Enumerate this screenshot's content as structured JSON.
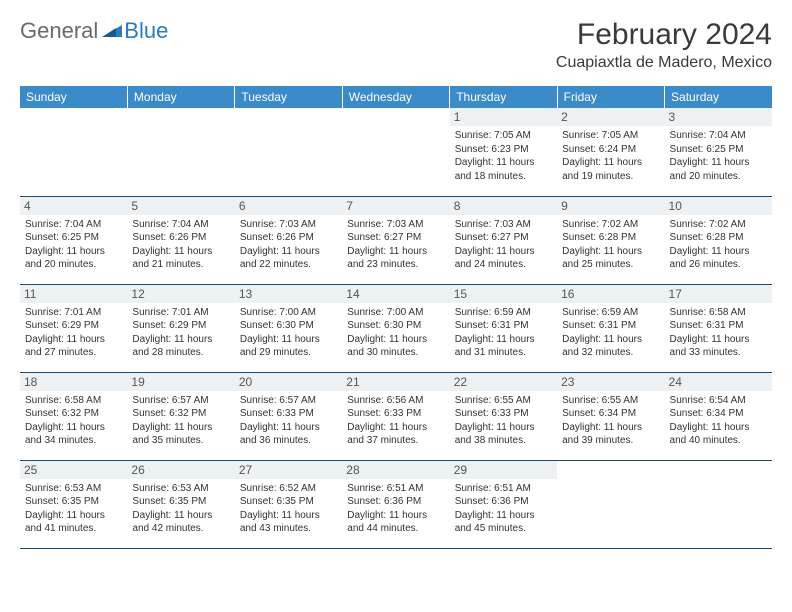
{
  "logo": {
    "text_general": "General",
    "text_blue": "Blue",
    "icon_color": "#2b7bbf"
  },
  "title": {
    "month": "February 2024",
    "location": "Cuapiaxtla de Madero, Mexico"
  },
  "colors": {
    "header_bg": "#3b8bc8",
    "header_text": "#ffffff",
    "daynum_bg": "#eef1f3",
    "border": "#1a4d73",
    "text": "#333333"
  },
  "weekdays": [
    "Sunday",
    "Monday",
    "Tuesday",
    "Wednesday",
    "Thursday",
    "Friday",
    "Saturday"
  ],
  "weeks": [
    [
      null,
      null,
      null,
      null,
      {
        "n": "1",
        "sunrise": "7:05 AM",
        "sunset": "6:23 PM",
        "daylight": "11 hours and 18 minutes."
      },
      {
        "n": "2",
        "sunrise": "7:05 AM",
        "sunset": "6:24 PM",
        "daylight": "11 hours and 19 minutes."
      },
      {
        "n": "3",
        "sunrise": "7:04 AM",
        "sunset": "6:25 PM",
        "daylight": "11 hours and 20 minutes."
      }
    ],
    [
      {
        "n": "4",
        "sunrise": "7:04 AM",
        "sunset": "6:25 PM",
        "daylight": "11 hours and 20 minutes."
      },
      {
        "n": "5",
        "sunrise": "7:04 AM",
        "sunset": "6:26 PM",
        "daylight": "11 hours and 21 minutes."
      },
      {
        "n": "6",
        "sunrise": "7:03 AM",
        "sunset": "6:26 PM",
        "daylight": "11 hours and 22 minutes."
      },
      {
        "n": "7",
        "sunrise": "7:03 AM",
        "sunset": "6:27 PM",
        "daylight": "11 hours and 23 minutes."
      },
      {
        "n": "8",
        "sunrise": "7:03 AM",
        "sunset": "6:27 PM",
        "daylight": "11 hours and 24 minutes."
      },
      {
        "n": "9",
        "sunrise": "7:02 AM",
        "sunset": "6:28 PM",
        "daylight": "11 hours and 25 minutes."
      },
      {
        "n": "10",
        "sunrise": "7:02 AM",
        "sunset": "6:28 PM",
        "daylight": "11 hours and 26 minutes."
      }
    ],
    [
      {
        "n": "11",
        "sunrise": "7:01 AM",
        "sunset": "6:29 PM",
        "daylight": "11 hours and 27 minutes."
      },
      {
        "n": "12",
        "sunrise": "7:01 AM",
        "sunset": "6:29 PM",
        "daylight": "11 hours and 28 minutes."
      },
      {
        "n": "13",
        "sunrise": "7:00 AM",
        "sunset": "6:30 PM",
        "daylight": "11 hours and 29 minutes."
      },
      {
        "n": "14",
        "sunrise": "7:00 AM",
        "sunset": "6:30 PM",
        "daylight": "11 hours and 30 minutes."
      },
      {
        "n": "15",
        "sunrise": "6:59 AM",
        "sunset": "6:31 PM",
        "daylight": "11 hours and 31 minutes."
      },
      {
        "n": "16",
        "sunrise": "6:59 AM",
        "sunset": "6:31 PM",
        "daylight": "11 hours and 32 minutes."
      },
      {
        "n": "17",
        "sunrise": "6:58 AM",
        "sunset": "6:31 PM",
        "daylight": "11 hours and 33 minutes."
      }
    ],
    [
      {
        "n": "18",
        "sunrise": "6:58 AM",
        "sunset": "6:32 PM",
        "daylight": "11 hours and 34 minutes."
      },
      {
        "n": "19",
        "sunrise": "6:57 AM",
        "sunset": "6:32 PM",
        "daylight": "11 hours and 35 minutes."
      },
      {
        "n": "20",
        "sunrise": "6:57 AM",
        "sunset": "6:33 PM",
        "daylight": "11 hours and 36 minutes."
      },
      {
        "n": "21",
        "sunrise": "6:56 AM",
        "sunset": "6:33 PM",
        "daylight": "11 hours and 37 minutes."
      },
      {
        "n": "22",
        "sunrise": "6:55 AM",
        "sunset": "6:33 PM",
        "daylight": "11 hours and 38 minutes."
      },
      {
        "n": "23",
        "sunrise": "6:55 AM",
        "sunset": "6:34 PM",
        "daylight": "11 hours and 39 minutes."
      },
      {
        "n": "24",
        "sunrise": "6:54 AM",
        "sunset": "6:34 PM",
        "daylight": "11 hours and 40 minutes."
      }
    ],
    [
      {
        "n": "25",
        "sunrise": "6:53 AM",
        "sunset": "6:35 PM",
        "daylight": "11 hours and 41 minutes."
      },
      {
        "n": "26",
        "sunrise": "6:53 AM",
        "sunset": "6:35 PM",
        "daylight": "11 hours and 42 minutes."
      },
      {
        "n": "27",
        "sunrise": "6:52 AM",
        "sunset": "6:35 PM",
        "daylight": "11 hours and 43 minutes."
      },
      {
        "n": "28",
        "sunrise": "6:51 AM",
        "sunset": "6:36 PM",
        "daylight": "11 hours and 44 minutes."
      },
      {
        "n": "29",
        "sunrise": "6:51 AM",
        "sunset": "6:36 PM",
        "daylight": "11 hours and 45 minutes."
      },
      null,
      null
    ]
  ],
  "labels": {
    "sunrise": "Sunrise:",
    "sunset": "Sunset:",
    "daylight": "Daylight:"
  }
}
